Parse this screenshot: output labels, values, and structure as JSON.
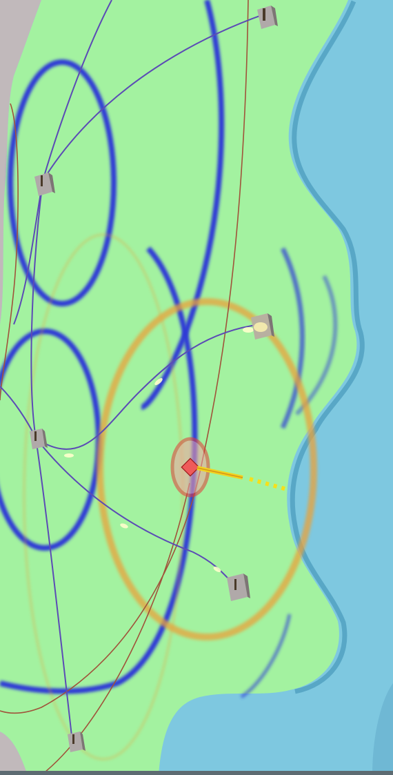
{
  "map": {
    "colors": {
      "land": "#a3f2a0",
      "water": "#7ec8e0",
      "water_shadow": "#4f9fbf",
      "urban": "#b9a6a6",
      "coverage_blue": "#2d3bd6",
      "coverage_orange": "#e9a23a",
      "link_purple": "#5b4bb5",
      "link_brown": "#a0523a",
      "target_red": "#e53a3a",
      "beam_yellow": "#f2d21e"
    },
    "icons": [
      "sensor-station-icon",
      "target-diamond-icon"
    ],
    "stations": [
      {
        "id": "station-top-right"
      },
      {
        "id": "station-upper-left"
      },
      {
        "id": "station-center-right"
      },
      {
        "id": "station-mid-left"
      },
      {
        "id": "station-lower-right"
      },
      {
        "id": "station-bottom"
      }
    ],
    "target": {
      "id": "target"
    },
    "labels": []
  }
}
